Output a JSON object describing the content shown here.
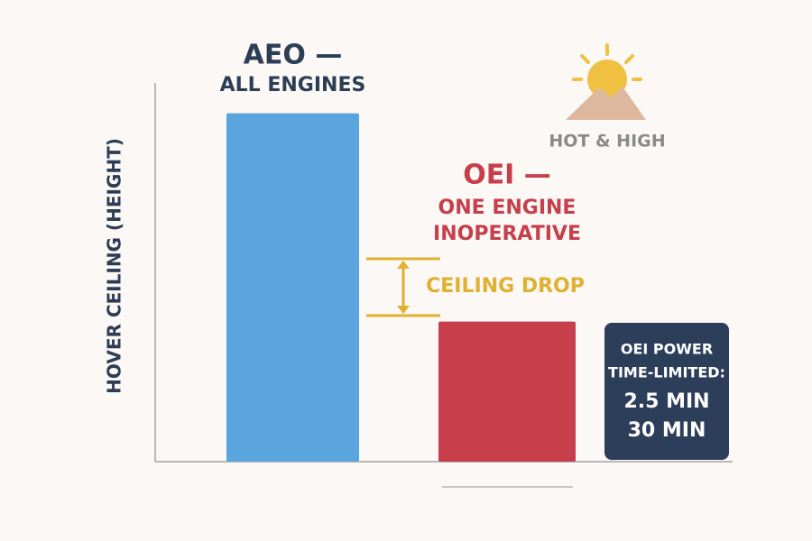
{
  "chart_data": {
    "type": "bar",
    "y_label": "HOVER CEILING (HEIGHT)",
    "categories": [
      [
        "AEO —",
        "ALL ENGINES"
      ],
      [
        "OEI —",
        "ONE ENGINE",
        "INOPERATIVE"
      ]
    ],
    "values": [
      92,
      37
    ],
    "colors": [
      "#5ba5de",
      "#c63f4a"
    ],
    "ylim": [
      0,
      100
    ],
    "annotations": {
      "drop": "CEILING DROP",
      "condition": "HOT & HIGH",
      "box": [
        "OEI POWER",
        "TIME-LIMITED:",
        "2.5 MIN",
        "30 MIN"
      ]
    }
  }
}
